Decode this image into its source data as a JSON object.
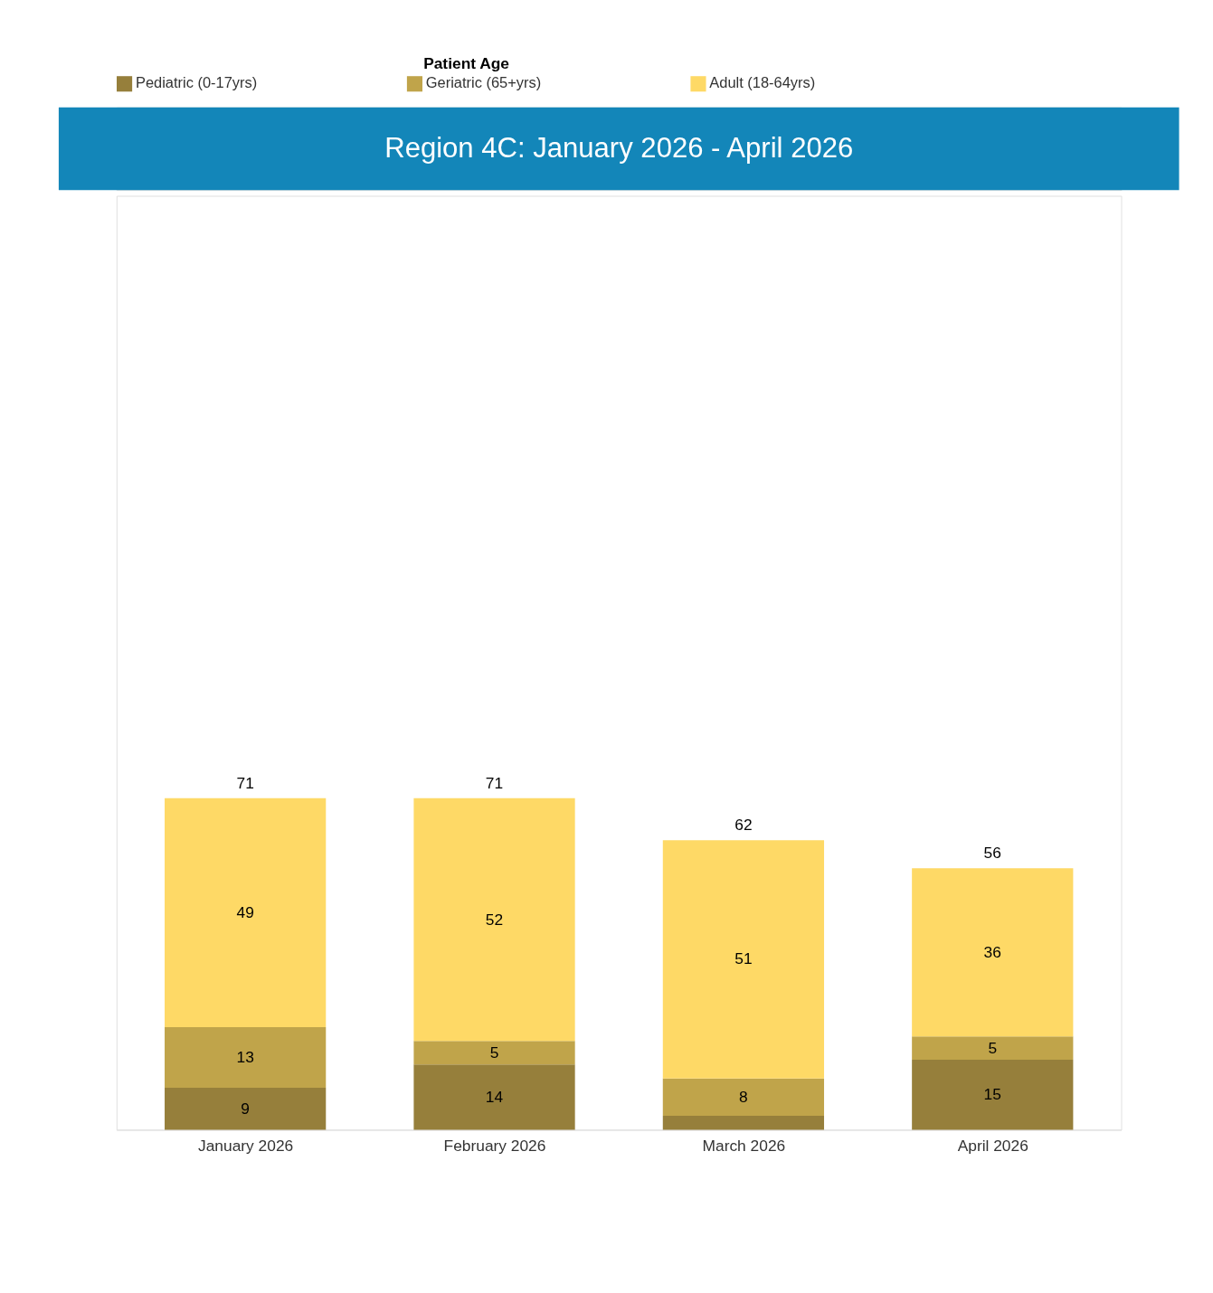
{
  "chart_data": {
    "type": "bar",
    "title": "Region 4C: January 2026 - April 2026",
    "legend_title": "Patient Age",
    "categories": [
      "January 2026",
      "February 2026",
      "March 2026",
      "April 2026"
    ],
    "stacked": true,
    "ylim": [
      0,
      200
    ],
    "tick_labels": "x",
    "grid": false,
    "legend": "top",
    "series": [
      {
        "name": "Pediatric (0-17yrs)",
        "color": "#967f3b",
        "values": [
          9,
          14,
          3,
          15
        ],
        "value_labels": [
          "9",
          "14",
          null,
          "15"
        ]
      },
      {
        "name": "Geriatric (65+yrs)",
        "color": "#c0a44a",
        "values": [
          13,
          5,
          8,
          5
        ],
        "value_labels": [
          "13",
          "5",
          "8",
          "5"
        ]
      },
      {
        "name": "Adult (18-64yrs)",
        "color": "#fed966",
        "values": [
          49,
          52,
          51,
          36
        ],
        "value_labels": [
          "49",
          "52",
          "51",
          "36"
        ]
      }
    ],
    "totals": [
      "71",
      "71",
      "62",
      "56"
    ]
  }
}
